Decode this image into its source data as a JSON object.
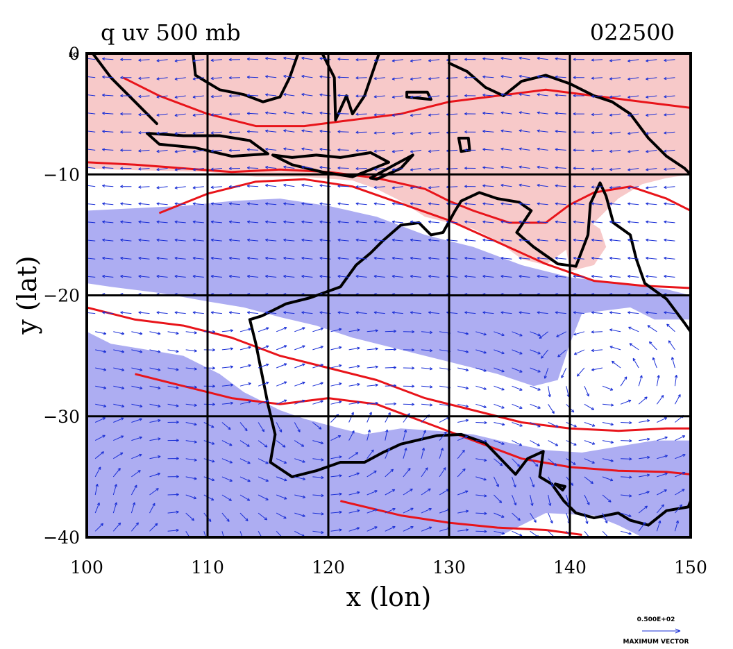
{
  "chart_data": {
    "type": "heatmap",
    "title": "q uv 500 mb",
    "title_right": "022500",
    "xlabel": "x (lon)",
    "ylabel": "y (lat)",
    "xlim": [
      100,
      150
    ],
    "ylim": [
      -40,
      0
    ],
    "x_ticks": [
      100,
      110,
      120,
      130,
      140,
      150
    ],
    "y_ticks": [
      0,
      -10,
      -20,
      -30,
      -40
    ],
    "x_tick_labels": [
      "100",
      "110",
      "120",
      "130",
      "140",
      "150"
    ],
    "y_tick_labels": [
      "0",
      "−10",
      "−20",
      "−30",
      "−40"
    ],
    "grid": true,
    "corner_label": "EQ",
    "vector_legend": {
      "value_label": "0.500E+02",
      "caption": "MAXIMUM VECTOR"
    },
    "colors": {
      "moist_fill": "#f7c9c9",
      "dry_fill": "#adadf2",
      "contour": "#e8141a",
      "coast": "#000000",
      "vector": "#1a2fd6"
    },
    "regions": {
      "moist": [
        [
          [
            100,
            0
          ],
          [
            150,
            0
          ],
          [
            150,
            -10
          ],
          [
            148,
            -10.3
          ],
          [
            146,
            -10.8
          ],
          [
            144,
            -12
          ],
          [
            142,
            -14
          ],
          [
            140,
            -16
          ],
          [
            138,
            -17.5
          ],
          [
            136,
            -17
          ],
          [
            134,
            -15.5
          ],
          [
            132,
            -14.5
          ],
          [
            130,
            -14
          ],
          [
            128,
            -13.5
          ],
          [
            126,
            -12.2
          ],
          [
            124,
            -11.2
          ],
          [
            122,
            -10.5
          ],
          [
            118,
            -10.2
          ],
          [
            114,
            -10.2
          ],
          [
            110,
            -9.8
          ],
          [
            106,
            -9.7
          ],
          [
            102,
            -9.6
          ],
          [
            100,
            -9.5
          ]
        ],
        [
          [
            139.5,
            -15
          ],
          [
            141,
            -13.5
          ],
          [
            142.5,
            -14.5
          ],
          [
            143,
            -16
          ],
          [
            142,
            -17.5
          ],
          [
            140,
            -18
          ]
        ]
      ],
      "dry": [
        [
          [
            100,
            -13
          ],
          [
            104,
            -12.8
          ],
          [
            108,
            -12.6
          ],
          [
            112,
            -12.2
          ],
          [
            116,
            -12
          ],
          [
            120,
            -12.6
          ],
          [
            124,
            -13.5
          ],
          [
            128,
            -15
          ],
          [
            132,
            -16
          ],
          [
            136,
            -17.5
          ],
          [
            140,
            -18.5
          ],
          [
            144,
            -19
          ],
          [
            148,
            -19.5
          ],
          [
            150,
            -20
          ],
          [
            150,
            -22
          ],
          [
            147,
            -22
          ],
          [
            145,
            -21
          ],
          [
            141,
            -21.5
          ],
          [
            140,
            -24
          ],
          [
            139,
            -27
          ],
          [
            137,
            -27.5
          ],
          [
            134,
            -26.5
          ],
          [
            130,
            -25.5
          ],
          [
            126,
            -24.5
          ],
          [
            122,
            -23.5
          ],
          [
            119,
            -22.5
          ],
          [
            116,
            -21.8
          ],
          [
            113,
            -21
          ],
          [
            110,
            -20.5
          ],
          [
            106,
            -19.8
          ],
          [
            102,
            -19.3
          ],
          [
            100,
            -19
          ]
        ],
        [
          [
            100,
            -23
          ],
          [
            102,
            -24
          ],
          [
            105,
            -24.5
          ],
          [
            108,
            -25
          ],
          [
            111,
            -26.5
          ],
          [
            113,
            -28
          ],
          [
            116,
            -29.5
          ],
          [
            118,
            -30.2
          ],
          [
            121,
            -31
          ],
          [
            123,
            -31.5
          ],
          [
            126,
            -31
          ],
          [
            129,
            -31.2
          ],
          [
            132,
            -31.5
          ],
          [
            135,
            -32.2
          ],
          [
            138,
            -32.8
          ],
          [
            141,
            -33
          ],
          [
            144,
            -32.5
          ],
          [
            147,
            -32
          ],
          [
            150,
            -32
          ],
          [
            150,
            -40
          ],
          [
            146,
            -40
          ],
          [
            144,
            -39
          ],
          [
            142,
            -38.2
          ],
          [
            138,
            -38
          ],
          [
            136,
            -39
          ],
          [
            134,
            -40
          ],
          [
            100,
            -40
          ]
        ]
      ]
    },
    "contours": [
      [
        [
          103,
          -2
        ],
        [
          106,
          -3.5
        ],
        [
          110,
          -5
        ],
        [
          114,
          -6
        ],
        [
          118,
          -6
        ],
        [
          122,
          -5.5
        ],
        [
          126,
          -5
        ],
        [
          130,
          -4
        ],
        [
          134,
          -3.5
        ],
        [
          138,
          -3
        ],
        [
          142,
          -3.5
        ],
        [
          146,
          -4
        ],
        [
          150,
          -4.5
        ]
      ],
      [
        [
          100,
          -9
        ],
        [
          104,
          -9.2
        ],
        [
          108,
          -9.5
        ],
        [
          112,
          -9.8
        ],
        [
          116,
          -9.6
        ],
        [
          120,
          -9.8
        ],
        [
          124,
          -10.3
        ],
        [
          128,
          -11.2
        ],
        [
          130,
          -12.2
        ],
        [
          132,
          -13
        ],
        [
          135,
          -14
        ],
        [
          138,
          -14
        ],
        [
          140,
          -12.5
        ],
        [
          142,
          -11.5
        ],
        [
          145,
          -11
        ],
        [
          148,
          -12
        ],
        [
          150,
          -13
        ]
      ],
      [
        [
          106,
          -13.2
        ],
        [
          110,
          -11.6
        ],
        [
          114,
          -10.6
        ],
        [
          118,
          -10.4
        ],
        [
          122,
          -11
        ],
        [
          126,
          -12.4
        ],
        [
          130,
          -13.8
        ],
        [
          134,
          -15.6
        ],
        [
          138,
          -17.4
        ],
        [
          142,
          -18.8
        ],
        [
          146,
          -19.2
        ],
        [
          150,
          -19.4
        ]
      ],
      [
        [
          100,
          -21
        ],
        [
          104,
          -22
        ],
        [
          108,
          -22.5
        ],
        [
          112,
          -23.5
        ],
        [
          116,
          -25
        ],
        [
          120,
          -26
        ],
        [
          124,
          -27
        ],
        [
          128,
          -28.5
        ],
        [
          132,
          -29.5
        ],
        [
          136,
          -30.5
        ],
        [
          140,
          -31
        ],
        [
          144,
          -31.2
        ],
        [
          148,
          -31
        ],
        [
          150,
          -31
        ]
      ],
      [
        [
          104,
          -26.5
        ],
        [
          108,
          -27.5
        ],
        [
          112,
          -28.5
        ],
        [
          116,
          -29
        ],
        [
          120,
          -28.5
        ],
        [
          124,
          -29
        ],
        [
          128,
          -30.5
        ],
        [
          132,
          -32
        ],
        [
          136,
          -33.5
        ],
        [
          140,
          -34.2
        ],
        [
          144,
          -34.5
        ],
        [
          148,
          -34.6
        ],
        [
          150,
          -34.8
        ]
      ],
      [
        [
          121,
          -37
        ],
        [
          126,
          -38.2
        ],
        [
          130,
          -38.8
        ],
        [
          134,
          -39.2
        ],
        [
          138,
          -39.4
        ],
        [
          141,
          -39.8
        ]
      ]
    ],
    "coastline": [
      [
        [
          113.5,
          -22
        ],
        [
          114,
          -24
        ],
        [
          114.5,
          -26.5
        ],
        [
          115,
          -29
        ],
        [
          115.6,
          -31.5
        ],
        [
          115.2,
          -33.8
        ],
        [
          117,
          -35
        ],
        [
          119,
          -34.5
        ],
        [
          121,
          -33.8
        ],
        [
          123,
          -33.8
        ],
        [
          124.5,
          -33
        ],
        [
          126,
          -32.3
        ],
        [
          129,
          -31.6
        ],
        [
          131,
          -31.5
        ],
        [
          133,
          -32.2
        ],
        [
          135.5,
          -34.8
        ],
        [
          136.5,
          -33.5
        ],
        [
          137.8,
          -32.9
        ],
        [
          137.5,
          -35
        ],
        [
          138.5,
          -35.6
        ],
        [
          139.5,
          -37
        ],
        [
          140.5,
          -38
        ],
        [
          142,
          -38.4
        ],
        [
          144,
          -38
        ],
        [
          145,
          -38.6
        ],
        [
          146.5,
          -39
        ],
        [
          148,
          -37.8
        ],
        [
          149.8,
          -37.5
        ],
        [
          150,
          -37
        ]
      ],
      [
        [
          113.5,
          -22
        ],
        [
          114.5,
          -21.7
        ],
        [
          116.5,
          -20.7
        ],
        [
          118.5,
          -20.2
        ],
        [
          121,
          -19.3
        ],
        [
          122.3,
          -17.5
        ],
        [
          123.5,
          -16.5
        ],
        [
          124.5,
          -15.5
        ],
        [
          126,
          -14.2
        ],
        [
          127.5,
          -14
        ],
        [
          128.5,
          -15
        ],
        [
          129.5,
          -14.8
        ],
        [
          130.5,
          -13
        ],
        [
          131,
          -12.2
        ],
        [
          132.5,
          -11.5
        ],
        [
          134,
          -12
        ],
        [
          135.8,
          -12.3
        ],
        [
          136.8,
          -13
        ],
        [
          135.6,
          -14.8
        ],
        [
          137,
          -16
        ],
        [
          139,
          -17.4
        ],
        [
          140.5,
          -17.6
        ],
        [
          141.5,
          -15
        ],
        [
          141.7,
          -12.4
        ],
        [
          142.5,
          -10.7
        ],
        [
          143,
          -11.8
        ],
        [
          143.6,
          -14
        ],
        [
          145,
          -15
        ],
        [
          145.5,
          -17
        ],
        [
          146.2,
          -19
        ],
        [
          148,
          -20.3
        ],
        [
          149.5,
          -22.3
        ],
        [
          150,
          -23
        ]
      ],
      [
        [
          100.5,
          0
        ],
        [
          102,
          -2
        ],
        [
          104,
          -4
        ],
        [
          105.8,
          -5.8
        ]
      ],
      [
        [
          105,
          -6.6
        ],
        [
          108,
          -6.8
        ],
        [
          111,
          -6.8
        ],
        [
          113.5,
          -7.2
        ],
        [
          115,
          -8.3
        ],
        [
          112,
          -8.5
        ],
        [
          109,
          -7.8
        ],
        [
          106,
          -7.5
        ],
        [
          105,
          -6.6
        ]
      ],
      [
        [
          115.4,
          -8.4
        ],
        [
          117,
          -8.6
        ],
        [
          119,
          -8.4
        ],
        [
          121,
          -8.6
        ],
        [
          123.5,
          -8.2
        ],
        [
          125,
          -9
        ],
        [
          122,
          -10.2
        ],
        [
          119.5,
          -9.8
        ],
        [
          117,
          -9.2
        ],
        [
          115.4,
          -8.4
        ]
      ],
      [
        [
          123.5,
          -10.3
        ],
        [
          125.5,
          -9.2
        ],
        [
          127,
          -8.4
        ],
        [
          126,
          -9.5
        ],
        [
          124,
          -10.4
        ],
        [
          123.5,
          -10.3
        ]
      ],
      [
        [
          108.8,
          0
        ],
        [
          109,
          -1.8
        ],
        [
          111,
          -3
        ],
        [
          113,
          -3.4
        ],
        [
          114.6,
          -4
        ],
        [
          116,
          -3.6
        ],
        [
          116.8,
          -2
        ],
        [
          117.5,
          0
        ]
      ],
      [
        [
          119.5,
          0
        ],
        [
          120.5,
          -2
        ],
        [
          120.6,
          -5.5
        ],
        [
          121.5,
          -3.5
        ],
        [
          122,
          -5
        ],
        [
          123,
          -3.5
        ],
        [
          124.2,
          0
        ]
      ],
      [
        [
          126.5,
          -3.2
        ],
        [
          128.2,
          -3.2
        ],
        [
          128.5,
          -3.8
        ],
        [
          126.5,
          -3.6
        ],
        [
          126.5,
          -3.2
        ]
      ],
      [
        [
          130,
          -0.8
        ],
        [
          131.5,
          -1.5
        ],
        [
          133,
          -2.8
        ],
        [
          134.5,
          -3.5
        ],
        [
          136,
          -2.3
        ],
        [
          138,
          -1.8
        ],
        [
          140,
          -2.5
        ],
        [
          141,
          -3
        ],
        [
          142,
          -3.5
        ],
        [
          143.5,
          -4
        ],
        [
          145,
          -5
        ],
        [
          146.5,
          -7
        ],
        [
          148,
          -8.5
        ],
        [
          149.5,
          -9.5
        ],
        [
          150,
          -10
        ]
      ],
      [
        [
          130.8,
          -7
        ],
        [
          131,
          -8.1
        ],
        [
          131.7,
          -8
        ],
        [
          131.6,
          -7
        ],
        [
          130.8,
          -7
        ]
      ],
      [
        [
          144,
          -40
        ],
        [
          145.5,
          -40.5
        ]
      ],
      [
        [
          138.8,
          -35.6
        ],
        [
          139.6,
          -35.8
        ],
        [
          139.4,
          -36.1
        ],
        [
          138.8,
          -35.6
        ]
      ]
    ]
  }
}
